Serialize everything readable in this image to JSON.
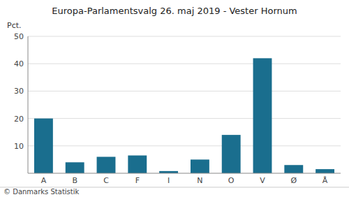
{
  "chart_data": {
    "type": "bar",
    "title": "Europa-Parlamentsvalg 26. maj 2019 - Vester Hornum",
    "ylabel": "Pct.",
    "annotations": [
      "© Danmarks Statistik"
    ],
    "categories": [
      "A",
      "B",
      "C",
      "F",
      "I",
      "N",
      "O",
      "V",
      "Ø",
      "Å"
    ],
    "values": [
      20.0,
      4.0,
      6.0,
      6.5,
      0.8,
      5.0,
      14.0,
      42.0,
      3.0,
      1.5
    ],
    "color": "#1a6e8e",
    "ylim": [
      0,
      50
    ],
    "yticks": [
      10,
      20,
      30,
      40,
      50
    ],
    "grid": true
  }
}
